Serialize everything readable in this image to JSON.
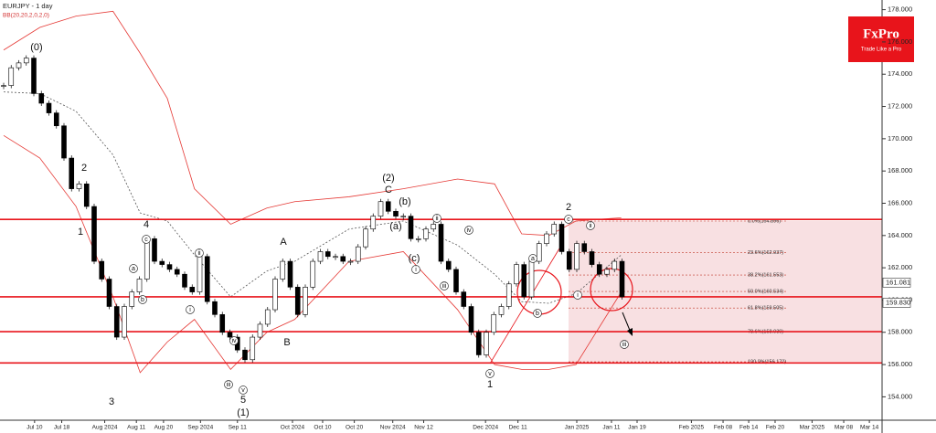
{
  "chart_data": {
    "type": "candlestick",
    "title": "EURJPY - 1 day",
    "subtitle": "BB(20,20,2,0,2,0)",
    "close": [
      173.3,
      174.4,
      174.7,
      175,
      172.8,
      172.2,
      171.6,
      170.8,
      168.8,
      166.9,
      167.2,
      165.8,
      162.4,
      161.3,
      159.6,
      157.7,
      159.6,
      160.5,
      161.3,
      163.8,
      162.4,
      162.2,
      161.9,
      161.6,
      160.8,
      160.5,
      162.7,
      159.9,
      159.1,
      158,
      157.7,
      156.9,
      156.3,
      157.7,
      158.5,
      159.4,
      161.3,
      162.4,
      160.8,
      159.1,
      160.8,
      162.4,
      163,
      162.7,
      162.7,
      162.4,
      162.4,
      163.3,
      164.4,
      165.2,
      166.1,
      165.5,
      165.2,
      165.2,
      163.8,
      163.8,
      164.4,
      164.7,
      162.4,
      161.9,
      160.5,
      159.6,
      158,
      156.6,
      158,
      159.1,
      159.6,
      161,
      162.2,
      160.2,
      162.4,
      163.5,
      164.1,
      164.7,
      163,
      161.9,
      163.5,
      163,
      162.2,
      161.6,
      161.9,
      162.4,
      160.2
    ],
    "up_color": "#ffffff",
    "down_color": "#000000",
    "bands": {
      "color": "#e53935",
      "x": [
        0,
        4.8,
        9.6,
        14.5,
        18.1,
        21.7,
        25.3,
        30.1,
        34.9,
        38.6,
        45.8,
        53,
        60.2,
        65.1,
        68.7,
        72.3,
        75.9,
        81.9
      ],
      "upper": [
        175.5,
        176.9,
        177.6,
        177.9,
        175.3,
        172.5,
        166.9,
        164.7,
        165.7,
        166.1,
        166.4,
        166.9,
        167.5,
        167.2,
        164.1,
        164,
        164.9,
        165.1
      ],
      "middle": [
        172.9,
        172.8,
        171.7,
        169,
        165.4,
        164.9,
        162.8,
        160.2,
        161.8,
        162.4,
        164.4,
        164.9,
        163.4,
        161.6,
        159.9,
        159.8,
        160.4,
        162.8
      ],
      "lower": [
        170.2,
        168.8,
        165.8,
        160.2,
        155.5,
        157.4,
        158.8,
        155.7,
        158,
        158.8,
        162.4,
        163,
        159.4,
        156,
        155.7,
        155.7,
        156,
        160.5
      ]
    },
    "levels": [
      165,
      160.2,
      158.04,
      156.1
    ],
    "level_color": "#e8141b",
    "fib": [
      {
        "value": 164.896,
        "label": "0.0%(164.896)"
      },
      {
        "value": 162.937,
        "label": "23.6%(162.937)"
      },
      {
        "value": 161.553,
        "label": "38.2%(161.553)"
      },
      {
        "value": 160.534,
        "label": "50.0%(160.534)"
      },
      {
        "value": 159.505,
        "label": "61.8%(159.505)"
      },
      {
        "value": 158.039,
        "label": "78.6%(158.039)"
      },
      {
        "value": 156.172,
        "label": "100.0%(156.172)"
      }
    ],
    "price_tags": [
      161.081,
      {
        "value": 159.83,
        "label": "159.830"
      }
    ],
    "annotations": [
      {
        "text": "(0)",
        "circled": false
      },
      {
        "text": "2",
        "circled": false
      },
      {
        "text": "1",
        "circled": false
      },
      {
        "text": "3",
        "circled": false
      },
      {
        "text": "4",
        "circled": false
      },
      {
        "text": "a",
        "circled": true
      },
      {
        "text": "b",
        "circled": true
      },
      {
        "text": "c",
        "circled": true
      },
      {
        "text": "i",
        "circled": true
      },
      {
        "text": "ii",
        "circled": true
      },
      {
        "text": "iii",
        "circled": true
      },
      {
        "text": "iv",
        "circled": true
      },
      {
        "text": "v",
        "circled": true
      },
      {
        "text": "5",
        "circled": false
      },
      {
        "text": "(1)",
        "circled": false
      },
      {
        "text": "A",
        "circled": false
      },
      {
        "text": "B",
        "circled": false
      },
      {
        "text": "(2)",
        "circled": false
      },
      {
        "text": "C",
        "circled": false
      },
      {
        "text": "(a)",
        "circled": false
      },
      {
        "text": "(b)",
        "circled": false
      },
      {
        "text": "(c)",
        "circled": false
      },
      {
        "text": "i",
        "circled": true
      },
      {
        "text": "ii",
        "circled": true
      },
      {
        "text": "iii",
        "circled": true
      },
      {
        "text": "iv",
        "circled": true
      },
      {
        "text": "v",
        "circled": true
      },
      {
        "text": "1",
        "circled": false
      },
      {
        "text": "a",
        "circled": true
      },
      {
        "text": "b",
        "circled": true
      },
      {
        "text": "c",
        "circled": true
      },
      {
        "text": "2",
        "circled": false
      },
      {
        "text": "i",
        "circled": true
      },
      {
        "text": "ii",
        "circled": true
      },
      {
        "text": "iii",
        "circled": true
      }
    ],
    "xlim": [
      0,
      116
    ],
    "xticks": [
      {
        "value": 4.1,
        "label": "Jul 10"
      },
      {
        "value": 7.7,
        "label": "Jul 18"
      },
      {
        "value": 13.4,
        "label": "Aug 2024"
      },
      {
        "value": 17.6,
        "label": "Aug 11"
      },
      {
        "value": 21.2,
        "label": "Aug 20"
      },
      {
        "value": 26.1,
        "label": "Sep 2024"
      },
      {
        "value": 31,
        "label": "Sep 11"
      },
      {
        "value": 38.3,
        "label": "Oct 2024"
      },
      {
        "value": 42.3,
        "label": "Oct 10"
      },
      {
        "value": 46.5,
        "label": "Oct 20"
      },
      {
        "value": 51.6,
        "label": "Nov 2024"
      },
      {
        "value": 55.7,
        "label": "Nov 12"
      },
      {
        "value": 63.9,
        "label": "Dec 2024"
      },
      {
        "value": 68.2,
        "label": "Dec 11"
      },
      {
        "value": 76,
        "label": "Jan 2025"
      },
      {
        "value": 80.6,
        "label": "Jan 11"
      },
      {
        "value": 84,
        "label": "Jan 19"
      },
      {
        "value": 91.2,
        "label": "Feb 2025"
      },
      {
        "value": 95.4,
        "label": "Feb 08"
      },
      {
        "value": 98.8,
        "label": "Feb 14"
      },
      {
        "value": 102.3,
        "label": "Feb 20"
      },
      {
        "value": 107.2,
        "label": "Mar 2025"
      },
      {
        "value": 111.4,
        "label": "Mar 08"
      },
      {
        "value": 114.8,
        "label": "Mar 14"
      }
    ],
    "ylim": [
      152.55,
      178.6
    ],
    "yticks": [
      {
        "value": 154,
        "label": "154.000"
      },
      {
        "value": 156,
        "label": "156.000"
      },
      {
        "value": 158,
        "label": "158.000"
      },
      {
        "value": 160,
        "label": "160.000"
      },
      {
        "value": 162,
        "label": "162.000"
      },
      {
        "value": 164,
        "label": "164.000"
      },
      {
        "value": 166,
        "label": "166.000"
      },
      {
        "value": 168,
        "label": "168.000"
      },
      {
        "value": 170,
        "label": "170.000"
      },
      {
        "value": 172,
        "label": "172.000"
      },
      {
        "value": 174,
        "label": "174.000"
      },
      {
        "value": 176,
        "label": "176.000"
      },
      {
        "value": 178,
        "label": "178.000"
      }
    ]
  },
  "logo": {
    "name": "FxPro",
    "tagline": "Trade Like a Pro"
  }
}
